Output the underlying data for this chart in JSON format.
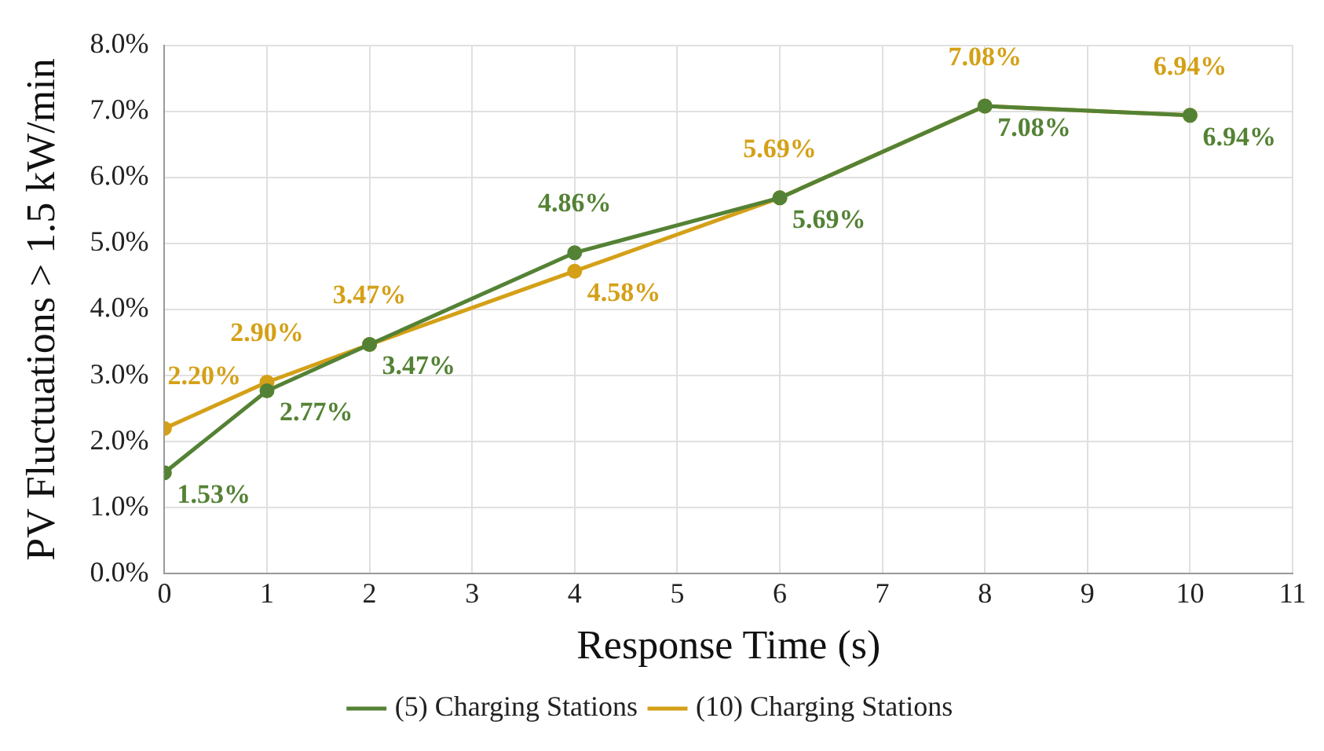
{
  "chart_data": {
    "type": "line",
    "xlabel": "Response Time (s)",
    "ylabel": "PV Fluctuations > 1.5 kW/min",
    "x": [
      0,
      1,
      2,
      4,
      6,
      8,
      10
    ],
    "series": [
      {
        "name": "(5) Charging Stations",
        "color": "#548235",
        "values": [
          1.53,
          2.77,
          3.47,
          4.86,
          5.69,
          7.08,
          6.94
        ],
        "value_labels": [
          "1.53%",
          "2.77%",
          "3.47%",
          "4.86%",
          "5.69%",
          "7.08%",
          "6.94%"
        ]
      },
      {
        "name": "(10) Charging Stations",
        "color": "#d4a017",
        "values": [
          2.2,
          2.9,
          3.47,
          4.58,
          5.69,
          7.08,
          6.94
        ],
        "value_labels": [
          "2.20%",
          "2.90%",
          "3.47%",
          "4.58%",
          "5.69%",
          "7.08%",
          "6.94%"
        ]
      }
    ],
    "xlim": [
      0,
      11
    ],
    "xticks": [
      0,
      1,
      2,
      3,
      4,
      5,
      6,
      7,
      8,
      9,
      10,
      11
    ],
    "ylim": [
      0,
      8
    ],
    "yticks": [
      {
        "value": 0,
        "label": "0.0%"
      },
      {
        "value": 1,
        "label": "1.0%"
      },
      {
        "value": 2,
        "label": "2.0%"
      },
      {
        "value": 3,
        "label": "3.0%"
      },
      {
        "value": 4,
        "label": "4.0%"
      },
      {
        "value": 5,
        "label": "5.0%"
      },
      {
        "value": 6,
        "label": "6.0%"
      },
      {
        "value": 7,
        "label": "7.0%"
      },
      {
        "value": 8,
        "label": "8.0%"
      }
    ],
    "grid": true,
    "legend": "bottom",
    "marker": "circle",
    "line_style": "solid"
  }
}
